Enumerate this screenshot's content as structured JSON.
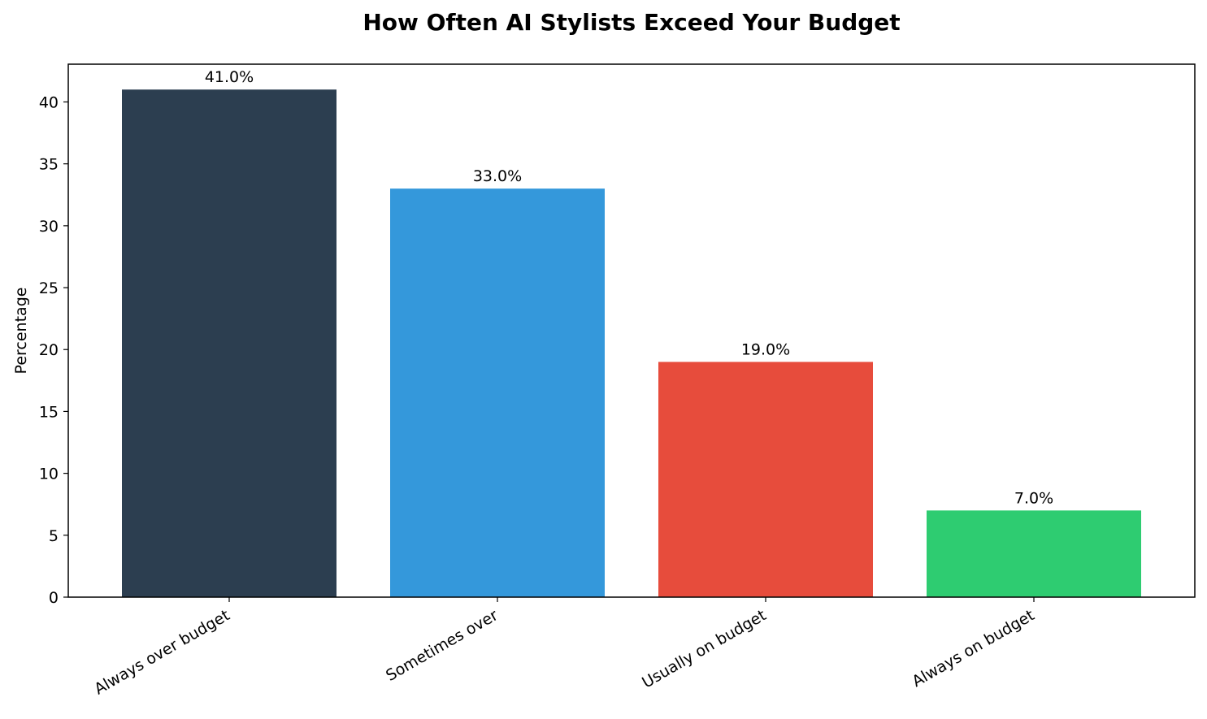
{
  "chart_data": {
    "type": "bar",
    "title": "How Often AI Stylists Exceed Your Budget",
    "y_label": "Percentage",
    "categories": [
      "Always over budget",
      "Sometimes over",
      "Usually on budget",
      "Always on budget"
    ],
    "values": [
      41.0,
      33.0,
      19.0,
      7.0
    ],
    "value_labels": [
      "41.0%",
      "33.0%",
      "19.0%",
      "7.0%"
    ],
    "colors": [
      "#2c3e50",
      "#3498db",
      "#e74c3c",
      "#2ecc71"
    ],
    "ylim": [
      0,
      43.05
    ],
    "yticks": [
      0,
      5,
      10,
      15,
      20,
      25,
      30,
      35,
      40
    ],
    "grid": false
  }
}
